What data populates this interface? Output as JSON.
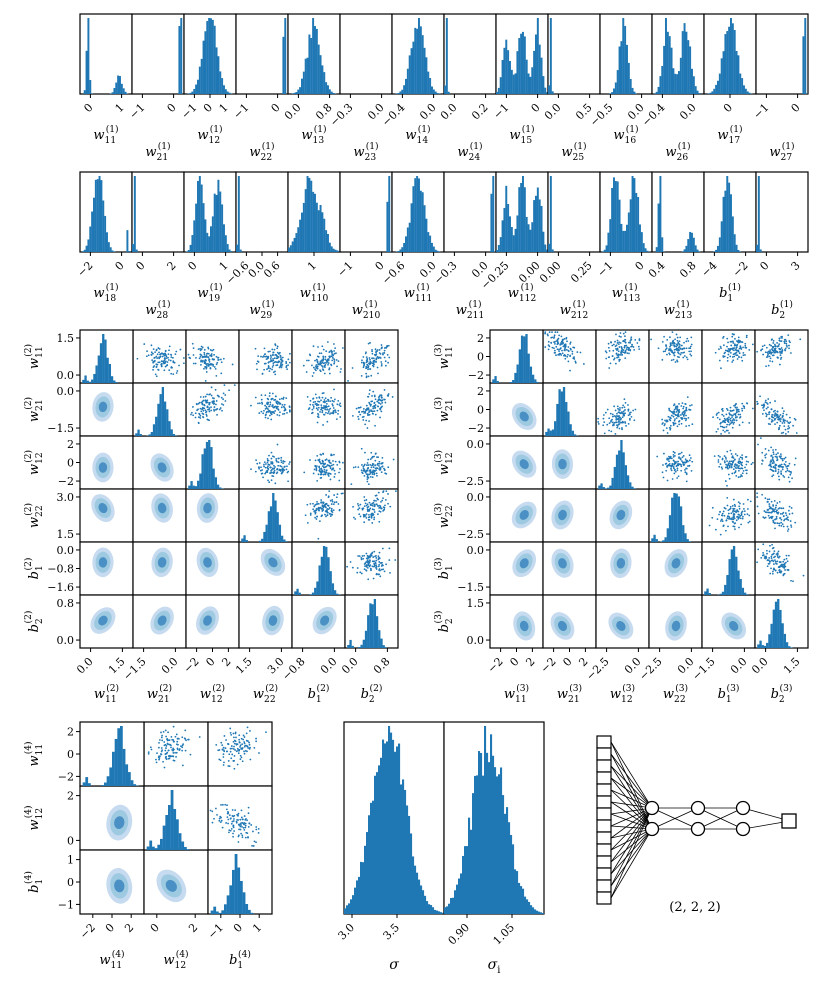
{
  "colors": {
    "hist": "#1f77b4",
    "scatter": "#1f77b4",
    "kde_light": "#c6dbef",
    "kde_mid": "#9ecae1",
    "kde_dark": "#4a90c4"
  },
  "chart_data": [
    {
      "type": "histogram-row",
      "panels": [
        {
          "sym": "w",
          "sub": "11",
          "sup": "(1)",
          "ticks": [
            "0",
            "1"
          ],
          "shape": "bimodal-left"
        },
        {
          "sym": "w",
          "sub": "21",
          "sup": "(1)",
          "ticks": [
            "−1",
            "0"
          ],
          "shape": "spike-right"
        },
        {
          "sym": "w",
          "sub": "12",
          "sup": "(1)",
          "ticks": [
            "−1",
            "0",
            "1"
          ],
          "shape": "bell"
        },
        {
          "sym": "w",
          "sub": "22",
          "sup": "(1)",
          "ticks": [
            "−1",
            "0"
          ],
          "shape": "spike-right"
        },
        {
          "sym": "w",
          "sub": "13",
          "sup": "(1)",
          "ticks": [
            "0.0",
            "0.8"
          ],
          "shape": "bell"
        },
        {
          "sym": "w",
          "sub": "23",
          "sup": "(1)",
          "ticks": [
            "−0.3",
            "0.0"
          ],
          "shape": "empty"
        },
        {
          "sym": "w",
          "sub": "14",
          "sup": "(1)",
          "ticks": [
            "−0.4",
            "0.0"
          ],
          "shape": "bell"
        },
        {
          "sym": "w",
          "sub": "24",
          "sup": "(1)",
          "ticks": [
            "0.0",
            "0.2"
          ],
          "shape": "spike-left"
        },
        {
          "sym": "w",
          "sub": "15",
          "sup": "(1)",
          "ticks": [
            "−1",
            "0"
          ],
          "shape": "multimodal"
        },
        {
          "sym": "w",
          "sub": "25",
          "sup": "(1)",
          "ticks": [
            "0.0",
            "0.5"
          ],
          "shape": "spike-left"
        },
        {
          "sym": "w",
          "sub": "16",
          "sup": "(1)",
          "ticks": [
            "−0.5",
            "0.0"
          ],
          "shape": "bell-narrow"
        },
        {
          "sym": "w",
          "sub": "26",
          "sup": "(1)",
          "ticks": [
            "−0.4",
            "0.0"
          ],
          "shape": "bimodal"
        },
        {
          "sym": "w",
          "sub": "17",
          "sup": "(1)",
          "ticks": [
            "0"
          ],
          "shape": "bell"
        },
        {
          "sym": "w",
          "sub": "27",
          "sup": "(1)",
          "ticks": [
            "−1",
            "0"
          ],
          "shape": "spike-right"
        }
      ]
    },
    {
      "type": "histogram-row",
      "panels": [
        {
          "sym": "w",
          "sub": "18",
          "sup": "(1)",
          "ticks": [
            "−2",
            "0"
          ],
          "shape": "bell-left"
        },
        {
          "sym": "w",
          "sub": "28",
          "sup": "(1)",
          "ticks": [
            "0",
            "2"
          ],
          "shape": "spike-left"
        },
        {
          "sym": "w",
          "sub": "19",
          "sup": "(1)",
          "ticks": [
            "0",
            "1"
          ],
          "shape": "bimodal"
        },
        {
          "sym": "w",
          "sub": "29",
          "sup": "(1)",
          "ticks": [
            "−0.6",
            "0.0",
            "0.6"
          ],
          "shape": "spike-left"
        },
        {
          "sym": "w",
          "sub": "110",
          "sup": "(1)",
          "ticks": [
            "1"
          ],
          "shape": "bell-wide"
        },
        {
          "sym": "w",
          "sub": "210",
          "sup": "(1)",
          "ticks": [
            "−1",
            "0"
          ],
          "shape": "spike-right"
        },
        {
          "sym": "w",
          "sub": "111",
          "sup": "(1)",
          "ticks": [
            "−0.6",
            "0.0"
          ],
          "shape": "bell"
        },
        {
          "sym": "w",
          "sub": "211",
          "sup": "(1)",
          "ticks": [
            "−0.3",
            "0.0"
          ],
          "shape": "spike-right"
        },
        {
          "sym": "w",
          "sub": "112",
          "sup": "(1)",
          "ticks": [
            "−0.25",
            "0.00"
          ],
          "shape": "multimodal"
        },
        {
          "sym": "w",
          "sub": "212",
          "sup": "(1)",
          "ticks": [
            "0.00",
            "0.25"
          ],
          "shape": "spike-left"
        },
        {
          "sym": "w",
          "sub": "113",
          "sup": "(1)",
          "ticks": [
            "−1",
            "0"
          ],
          "shape": "bimodal"
        },
        {
          "sym": "w",
          "sub": "213",
          "sup": "(1)",
          "ticks": [
            "0.4",
            "0.8"
          ],
          "shape": "bimodal-left"
        },
        {
          "sym": "b",
          "sub": "1",
          "sup": "(1)",
          "ticks": [
            "−4",
            "−2"
          ],
          "shape": "bell-narrow"
        },
        {
          "sym": "b",
          "sub": "2",
          "sup": "(1)",
          "ticks": [
            "0",
            "3"
          ],
          "shape": "spike-left"
        }
      ]
    },
    {
      "type": "corner",
      "id": "layer2",
      "labels": [
        {
          "sym": "w",
          "sub": "11",
          "sup": "(2)"
        },
        {
          "sym": "w",
          "sub": "21",
          "sup": "(2)"
        },
        {
          "sym": "w",
          "sub": "12",
          "sup": "(2)"
        },
        {
          "sym": "w",
          "sub": "22",
          "sup": "(2)"
        },
        {
          "sym": "b",
          "sub": "1",
          "sup": "(2)"
        },
        {
          "sym": "b",
          "sub": "2",
          "sup": "(2)"
        }
      ],
      "xticks": [
        [
          "0.0",
          "1.5"
        ],
        [
          "−1.5",
          "0.0"
        ],
        [
          "−2",
          "0",
          "2"
        ],
        [
          "1.5",
          "3.0"
        ],
        [
          "−0.8",
          "0.0"
        ],
        [
          "0.0",
          "0.8"
        ]
      ],
      "yticks": [
        [
          "1.5",
          "0.0"
        ],
        [
          "0.0",
          "−1.5"
        ],
        [
          "2",
          "0",
          "−2"
        ],
        [
          "3.0",
          "1.5"
        ],
        [
          "0.0",
          "−0.8",
          "−1.6"
        ],
        [
          "0.8",
          "0.0"
        ]
      ]
    },
    {
      "type": "corner",
      "id": "layer3",
      "labels": [
        {
          "sym": "w",
          "sub": "11",
          "sup": "(3)"
        },
        {
          "sym": "w",
          "sub": "21",
          "sup": "(3)"
        },
        {
          "sym": "w",
          "sub": "12",
          "sup": "(3)"
        },
        {
          "sym": "w",
          "sub": "22",
          "sup": "(3)"
        },
        {
          "sym": "b",
          "sub": "1",
          "sup": "(3)"
        },
        {
          "sym": "b",
          "sub": "2",
          "sup": "(3)"
        }
      ],
      "xticks": [
        [
          "−2",
          "0",
          "2"
        ],
        [
          "−2",
          "0",
          "2"
        ],
        [
          "−2.5",
          "0.0"
        ],
        [
          "−2.5",
          "0.0"
        ],
        [
          "−1.5",
          "0.0"
        ],
        [
          "0.0",
          "1.5"
        ]
      ],
      "yticks": [
        [
          "2",
          "0",
          "−2"
        ],
        [
          "2",
          "0",
          "−2"
        ],
        [
          "0.0",
          "−2.5"
        ],
        [
          "0.0",
          "−2.5"
        ],
        [
          "0.0",
          "−1.5"
        ],
        [
          "1.5",
          "0.0"
        ]
      ]
    },
    {
      "type": "corner",
      "id": "layer4",
      "labels": [
        {
          "sym": "w",
          "sub": "11",
          "sup": "(4)"
        },
        {
          "sym": "w",
          "sub": "12",
          "sup": "(4)"
        },
        {
          "sym": "b",
          "sub": "1",
          "sup": "(4)"
        }
      ],
      "xticks": [
        [
          "−2",
          "0",
          "2"
        ],
        [
          "0",
          "2"
        ],
        [
          "−1",
          "0",
          "1"
        ]
      ],
      "yticks": [
        [
          "2",
          "0",
          "−2"
        ],
        [
          "2",
          "0"
        ],
        [
          "1",
          "0",
          "−1"
        ]
      ]
    },
    {
      "type": "histogram-pair",
      "panels": [
        {
          "sym": "σ",
          "sub": "",
          "ticks": [
            "3.0",
            "3.5"
          ]
        },
        {
          "sym": "σ",
          "sub": "i",
          "ticks": [
            "0.90",
            "1.05"
          ]
        }
      ]
    }
  ],
  "network": {
    "caption": "(2, 2, 2)",
    "inputs": 14,
    "hidden": [
      2,
      2,
      2
    ],
    "outputs": 1
  }
}
